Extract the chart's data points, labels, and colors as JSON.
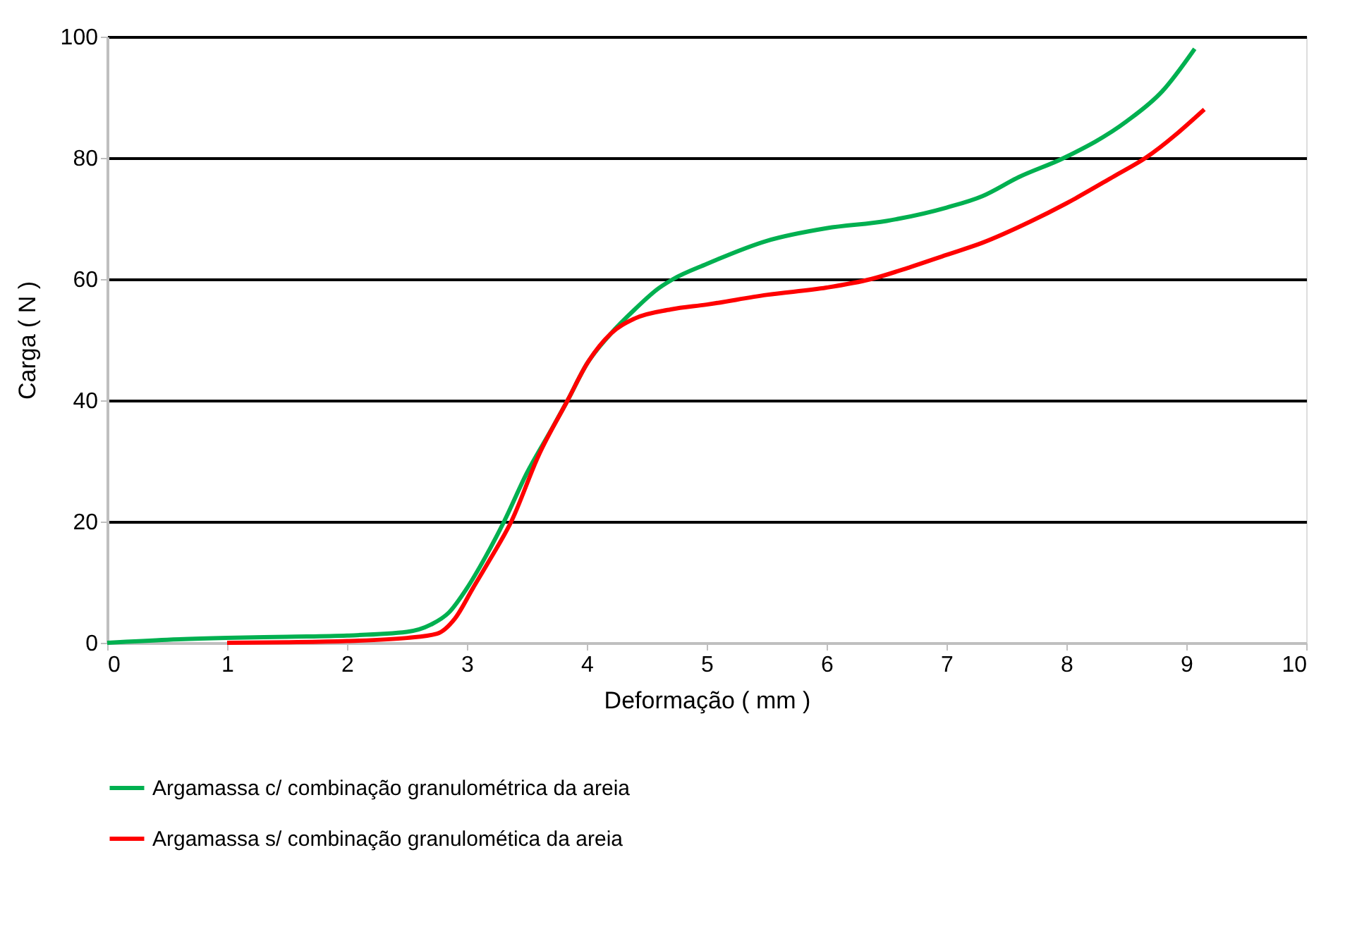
{
  "chart_data": {
    "type": "line",
    "xlabel": "Deformação ( mm )",
    "ylabel": "Carga ( N )",
    "xlim": [
      0,
      10
    ],
    "xticks": [
      0,
      1,
      2,
      3,
      4,
      5,
      6,
      7,
      8,
      9,
      10
    ],
    "ylim": [
      0,
      100
    ],
    "yticks": [
      0,
      20,
      40,
      60,
      80,
      100
    ],
    "grid": "y",
    "legend": "bottom",
    "marker": "none",
    "line_style": "solid",
    "series": [
      {
        "name": "Argamassa c/ combinação granulométrica da areia",
        "color": "#00b050",
        "x": [
          0,
          0.5,
          1,
          1.5,
          2,
          2.5,
          2.7,
          2.85,
          3,
          3.15,
          3.31,
          3.5,
          3.7,
          3.84,
          4,
          4.2,
          4.4,
          4.6,
          4.72,
          5,
          5.5,
          6,
          6.5,
          7,
          7.3,
          7.6,
          7.98,
          8.5,
          8.8,
          9.07
        ],
        "values": [
          0,
          0.5,
          0.8,
          1,
          1.2,
          1.8,
          3,
          5,
          9,
          14,
          20,
          28,
          35,
          40,
          46,
          51,
          55,
          58.5,
          60,
          62.5,
          66.3,
          68.4,
          69.6,
          71.8,
          73.7,
          76.8,
          80,
          86,
          91,
          98
        ]
      },
      {
        "name": "Argamassa s/ combinação granulomética da areia",
        "color": "#ff0000",
        "x": [
          1,
          1.5,
          2,
          2.5,
          2.75,
          2.9,
          3.05,
          3.2,
          3.37,
          3.6,
          3.84,
          4,
          4.2,
          4.4,
          4.7,
          5,
          5.5,
          6,
          6.37,
          6.7,
          7,
          7.3,
          7.7,
          8,
          8.4,
          8.66,
          9.15
        ],
        "values": [
          0,
          0.1,
          0.3,
          0.8,
          1.5,
          4,
          9,
          14,
          20,
          31,
          40,
          46,
          51,
          53.5,
          55,
          55.8,
          57.4,
          58.6,
          60,
          62,
          64,
          66,
          69.5,
          72.5,
          77,
          80,
          88
        ]
      }
    ]
  }
}
